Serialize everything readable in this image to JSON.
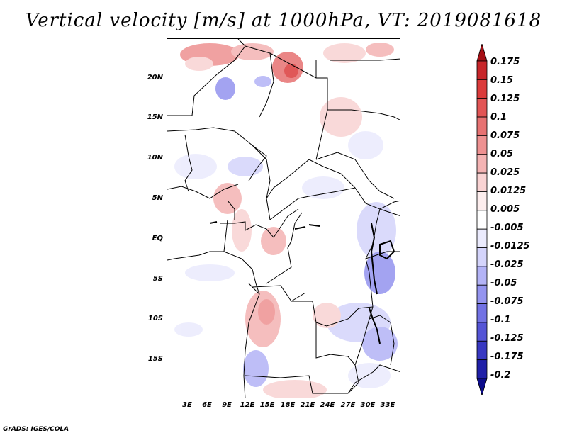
{
  "title": "Vertical velocity [m/s] at 1000hPa, VT: 2019081618",
  "credit": "GrADS: IGES/COLA",
  "lat_labels": [
    "20N",
    "15N",
    "10N",
    "5N",
    "EQ",
    "5S",
    "10S",
    "15S"
  ],
  "lon_labels": [
    "3E",
    "6E",
    "9E",
    "12E",
    "15E",
    "18E",
    "21E",
    "24E",
    "27E",
    "30E",
    "33E"
  ],
  "colorbar": {
    "labels": [
      "0.175",
      "0.15",
      "0.125",
      "0.1",
      "0.075",
      "0.05",
      "0.025",
      "0.0125",
      "0.005",
      "-0.005",
      "-0.0125",
      "-0.025",
      "-0.05",
      "-0.075",
      "-0.1",
      "-0.125",
      "-0.175",
      "-0.2"
    ],
    "colors": [
      "#a50f15",
      "#c8262a",
      "#db3b3b",
      "#e25555",
      "#e77272",
      "#ee9191",
      "#f4b3b3",
      "#f9d3d3",
      "#fdeeee",
      "#ffffff",
      "#ebebfd",
      "#d4d4fb",
      "#b3b3f6",
      "#9494ef",
      "#7272e4",
      "#5454d6",
      "#3838c2",
      "#1f1fa8",
      "#0c0c8a"
    ]
  }
}
